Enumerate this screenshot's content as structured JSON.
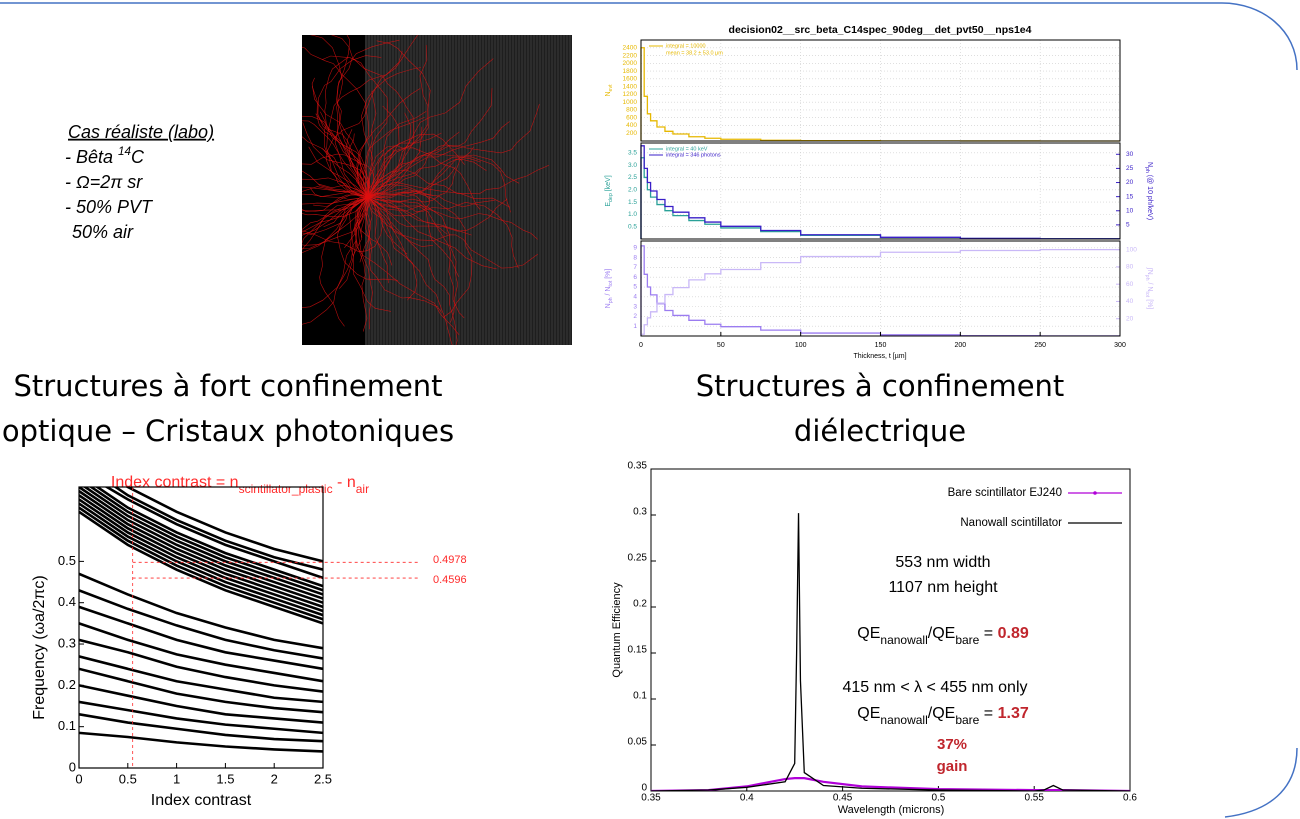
{
  "text_box": {
    "heading": "Cas réaliste (labo)",
    "lines": [
      [
        "- Bêta ",
        "14",
        "C"
      ],
      "- Ω=2π sr",
      "- 50% PVT",
      "50% air"
    ]
  },
  "captions": [
    "Structures à fort confinement",
    "optique – Cristaux photoniques",
    "Structures à confinement",
    "diélectrique"
  ],
  "chart_data": [
    {
      "type": "step",
      "title": "decision02__src_beta_C14spec_90deg__det_pvt50__nps1e4",
      "xlabel": "Thickness, t [µm]",
      "xlim": [
        0,
        300
      ],
      "xticks": [
        0,
        50,
        100,
        150,
        200,
        250,
        300
      ],
      "grid": true,
      "bins": [
        0,
        2,
        4,
        6,
        10,
        15,
        20,
        30,
        40,
        50,
        75,
        100,
        150,
        200,
        250,
        300
      ],
      "panels": [
        {
          "ylabel": "N",
          "ylabel_sub": "evt",
          "ylim": [
            0,
            2600
          ],
          "yticks": [
            200,
            400,
            600,
            800,
            1000,
            1200,
            1400,
            1600,
            1800,
            2000,
            2200,
            2400
          ],
          "note": "mean = 38.2 ± 53.0 µm",
          "series": [
            {
              "name": "integral = 10000",
              "color": "#e6b800",
              "values": [
                2400,
                1150,
                700,
                520,
                360,
                250,
                180,
                110,
                70,
                45,
                20,
                8,
                3,
                1,
                0
              ]
            }
          ]
        },
        {
          "ylabel": "E",
          "ylabel_sub": "dep",
          "ylabel_unit": " [keV]",
          "ylim": [
            0,
            3.9
          ],
          "yticks": [
            0.5,
            {
              "value": 1,
              "label": "1.0"
            },
            1.5,
            {
              "value": 2,
              "label": "2.0"
            },
            2.5,
            {
              "value": 3,
              "label": "3.0"
            },
            3.5
          ],
          "y2label": "N",
          "y2label_sub": "ph",
          "y2label_unit": " (@ 10 ph/keV)",
          "y2lim": [
            0,
            34
          ],
          "y2ticks": [
            5,
            10,
            15,
            20,
            25,
            30
          ],
          "series": [
            {
              "name": "integral = 40 keV",
              "color": "#2aa198",
              "values": [
                3.3,
                2.5,
                2.0,
                1.7,
                1.4,
                1.15,
                0.95,
                0.75,
                0.6,
                0.45,
                0.3,
                0.15,
                0.06,
                0.02,
                0.01
              ]
            },
            {
              "name": "integral = 346 photons",
              "color": "#3a1fc8",
              "axis": "y2",
              "values": [
                33,
                25,
                20,
                17,
                14,
                11.5,
                9.5,
                7.5,
                6,
                4.5,
                3,
                1.5,
                0.6,
                0.2,
                0.1
              ]
            }
          ]
        },
        {
          "ylabel": "N",
          "ylabel_sub": "ph",
          "ylabel_unit": " / N",
          "ylabel_sub2": "tot",
          "ylabel_unit2": " [%]",
          "ylim": [
            0,
            9.7
          ],
          "yticks": [
            1,
            2,
            3,
            4,
            5,
            6,
            7,
            8,
            9
          ],
          "y2label": "∫N",
          "y2label_sub": "ph",
          "y2label_unit": " / N",
          "y2label_sub2": "tot",
          "y2label_unit2": " [%]",
          "y2lim": [
            0,
            110
          ],
          "y2ticks": [
            20,
            40,
            60,
            80,
            100
          ],
          "series": [
            {
              "color": "#9b7cf0",
              "values": [
                9.2,
                6.3,
                5.0,
                4.2,
                3.3,
                2.6,
                2.1,
                1.6,
                1.2,
                0.95,
                0.6,
                0.3,
                0.12,
                0.04,
                0.01
              ]
            },
            {
              "color": "#c9b8f7",
              "axis": "y2",
              "values": [
                2,
                13,
                21,
                28,
                38,
                48,
                56,
                65,
                72,
                77,
                85,
                92,
                97,
                99,
                100
              ]
            }
          ]
        }
      ]
    },
    {
      "type": "band_diagram",
      "title": [
        "Index contrast = n",
        "scintillator_plastic",
        " - n",
        "air"
      ],
      "xlabel": "Index contrast",
      "ylabel": "Frequency (ωa/2πc)",
      "xlim": [
        0,
        2.5
      ],
      "ylim": [
        0,
        0.68
      ],
      "xticks": [
        0,
        0.5,
        1,
        1.5,
        2,
        2.5
      ],
      "yticks": [
        0,
        0.1,
        0.2,
        0.3,
        0.4,
        0.5
      ],
      "marker_x": 0.55,
      "levels": [
        0.4978,
        0.4596
      ],
      "color": "#000000",
      "marker_color": "#ff2a2a",
      "x": [
        0,
        0.5,
        1,
        1.5,
        2,
        2.5
      ],
      "series": [
        {
          "values": [
            0.085,
            0.075,
            0.062,
            0.052,
            0.045,
            0.04
          ]
        },
        {
          "values": [
            0.13,
            0.11,
            0.095,
            0.08,
            0.07,
            0.065
          ]
        },
        {
          "values": [
            0.16,
            0.14,
            0.12,
            0.105,
            0.095,
            0.085
          ]
        },
        {
          "values": [
            0.2,
            0.175,
            0.15,
            0.13,
            0.12,
            0.11
          ]
        },
        {
          "values": [
            0.24,
            0.21,
            0.18,
            0.16,
            0.145,
            0.135
          ]
        },
        {
          "values": [
            0.27,
            0.24,
            0.21,
            0.19,
            0.17,
            0.16
          ]
        },
        {
          "values": [
            0.31,
            0.28,
            0.245,
            0.22,
            0.2,
            0.185
          ]
        },
        {
          "values": [
            0.35,
            0.31,
            0.275,
            0.25,
            0.23,
            0.21
          ]
        },
        {
          "values": [
            0.39,
            0.35,
            0.31,
            0.28,
            0.26,
            0.24
          ]
        },
        {
          "values": [
            0.43,
            0.385,
            0.345,
            0.31,
            0.285,
            0.265
          ]
        },
        {
          "values": [
            0.47,
            0.42,
            0.375,
            0.34,
            0.31,
            0.29
          ]
        },
        {
          "values": [
            0.75,
            0.68,
            0.62,
            0.57,
            0.53,
            0.5
          ]
        },
        {
          "values": [
            0.74,
            0.66,
            0.6,
            0.55,
            0.51,
            0.48
          ]
        },
        {
          "values": [
            0.72,
            0.65,
            0.59,
            0.54,
            0.5,
            0.46
          ]
        },
        {
          "values": [
            0.71,
            0.63,
            0.57,
            0.52,
            0.48,
            0.44
          ]
        },
        {
          "values": [
            0.7,
            0.62,
            0.56,
            0.51,
            0.47,
            0.43
          ]
        },
        {
          "values": [
            0.69,
            0.61,
            0.55,
            0.5,
            0.46,
            0.42
          ]
        },
        {
          "values": [
            0.68,
            0.6,
            0.54,
            0.49,
            0.45,
            0.41
          ]
        },
        {
          "values": [
            0.67,
            0.59,
            0.53,
            0.48,
            0.44,
            0.4
          ]
        },
        {
          "values": [
            0.66,
            0.58,
            0.52,
            0.47,
            0.43,
            0.39
          ]
        },
        {
          "values": [
            0.65,
            0.57,
            0.51,
            0.46,
            0.42,
            0.38
          ]
        },
        {
          "values": [
            0.64,
            0.56,
            0.5,
            0.45,
            0.41,
            0.37
          ]
        },
        {
          "values": [
            0.63,
            0.55,
            0.49,
            0.44,
            0.4,
            0.36
          ]
        },
        {
          "values": [
            0.62,
            0.54,
            0.48,
            0.43,
            0.39,
            0.35
          ]
        }
      ]
    },
    {
      "type": "line",
      "xlabel": "Wavelength (microns)",
      "ylabel": "Quantum Efficiency",
      "xlim": [
        0.35,
        0.6
      ],
      "ylim": [
        0,
        0.35
      ],
      "xticks": [
        0.35,
        0.4,
        0.45,
        0.5,
        0.55,
        0.6
      ],
      "yticks": [
        0,
        0.05,
        0.1,
        0.15,
        0.2,
        0.25,
        0.3,
        0.35
      ],
      "x": [
        0.35,
        0.38,
        0.4,
        0.41,
        0.42,
        0.425,
        0.426,
        0.427,
        0.428,
        0.43,
        0.44,
        0.46,
        0.5,
        0.55,
        0.555,
        0.56,
        0.565,
        0.6
      ],
      "series": [
        {
          "name": "Bare scintillator EJ240",
          "color": "#b000d8",
          "values": [
            0,
            0.001,
            0.005,
            0.009,
            0.013,
            0.014,
            0.014,
            0.014,
            0.014,
            0.014,
            0.01,
            0.005,
            0.002,
            0.001,
            0.001,
            0.001,
            0.001,
            0
          ]
        },
        {
          "name": "Nanowall scintillator",
          "color": "#000000",
          "values": [
            0,
            0.001,
            0.004,
            0.007,
            0.01,
            0.03,
            0.15,
            0.302,
            0.12,
            0.02,
            0.006,
            0.003,
            0.001,
            0,
            0.001,
            0.006,
            0.001,
            0
          ]
        }
      ],
      "annotations": [
        "553 nm width",
        "1107 nm height"
      ],
      "ratio_all": [
        "QE",
        "nanowall",
        "/QE",
        "bare",
        " = ",
        "0.89"
      ],
      "range_note": "415 nm < λ < 455 nm only",
      "ratio_range": [
        "QE",
        "nanowall",
        "/QE",
        "bare",
        " = ",
        "1.37"
      ],
      "gain": [
        "37%",
        "gain"
      ],
      "highlight_color": "#c0262d"
    }
  ]
}
